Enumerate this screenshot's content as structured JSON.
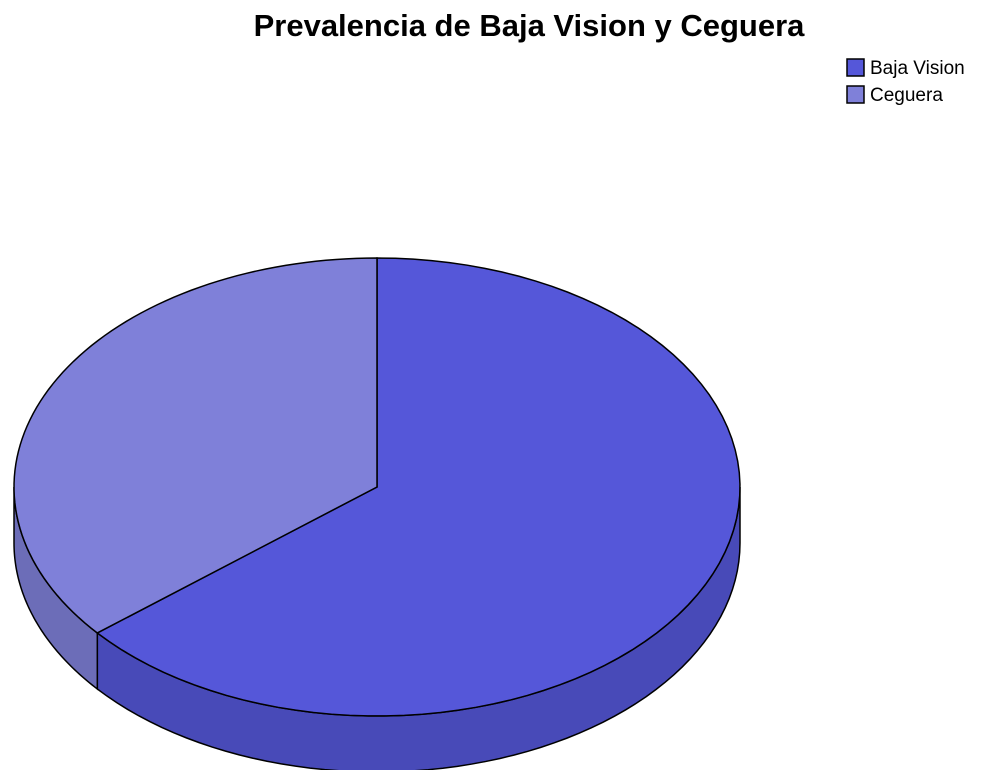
{
  "chart_data": {
    "type": "pie",
    "title": "Prevalencia de Baja Vision y Ceguera",
    "categories": [
      "Baja Vision",
      "Ceguera"
    ],
    "values": [
      64,
      36
    ],
    "colors": [
      "#5557d9",
      "#7f80d9"
    ],
    "legend": "top-right"
  }
}
